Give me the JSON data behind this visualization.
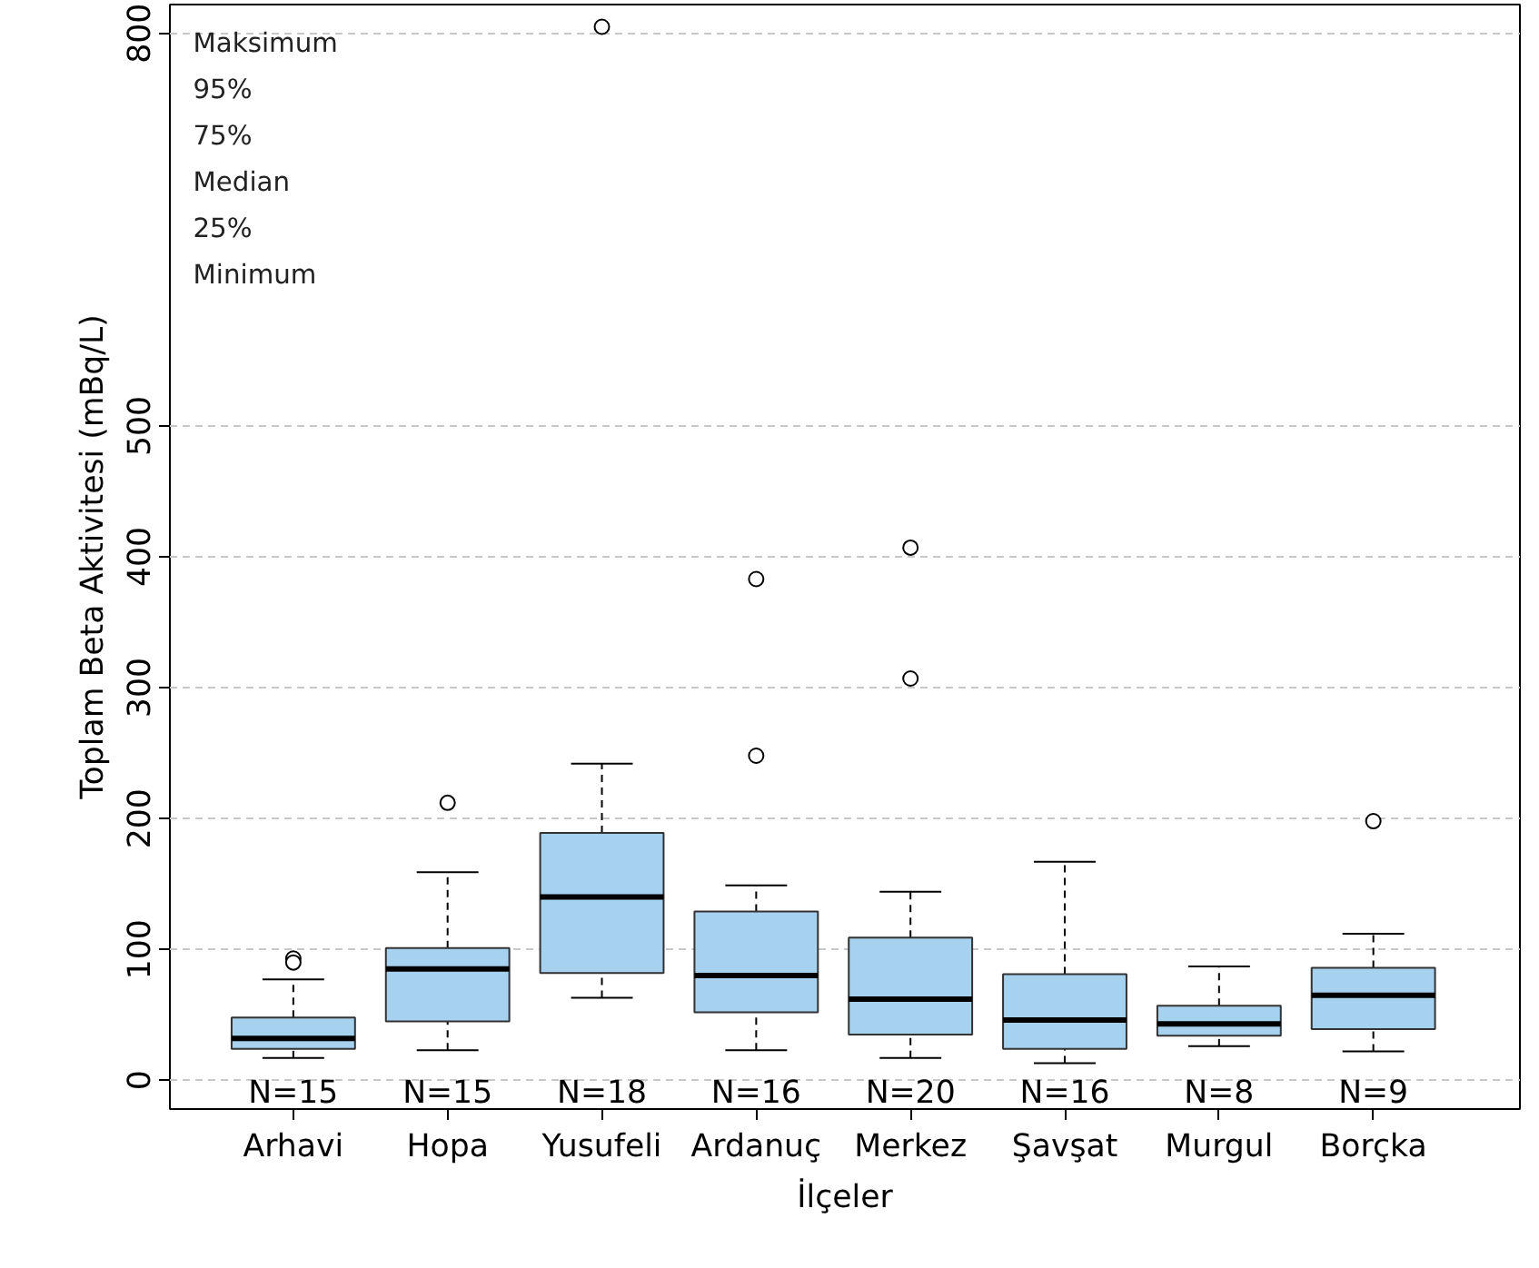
{
  "chart_data": {
    "type": "box",
    "categories": [
      "Arhavi",
      "Hopa",
      "Yusufeli",
      "Ardanuç",
      "Merkez",
      "Şavşat",
      "Murgul",
      "Borçka"
    ],
    "ylim": [
      -22,
      822
    ],
    "yticks": [
      0,
      100,
      200,
      300,
      400,
      500,
      800
    ],
    "grid": "y",
    "xlabel": "İlçeler",
    "ylabel": "Toplam Beta Aktivitesi (mBq/L)",
    "series": [
      {
        "color": "#a6d1ef",
        "boxes": [
          {
            "low": 17,
            "q1": 24,
            "median": 32,
            "q3": 48,
            "high": 77,
            "outliers": [
              93,
              90
            ]
          },
          {
            "low": 23,
            "q1": 45,
            "median": 85,
            "q3": 101,
            "high": 159,
            "outliers": [
              212
            ]
          },
          {
            "low": 63,
            "q1": 82,
            "median": 140,
            "q3": 189,
            "high": 242,
            "outliers": [
              805
            ]
          },
          {
            "low": 23,
            "q1": 52,
            "median": 80,
            "q3": 129,
            "high": 149,
            "outliers": [
              248,
              383
            ]
          },
          {
            "low": 17,
            "q1": 35,
            "median": 62,
            "q3": 109,
            "high": 144,
            "outliers": [
              307,
              407
            ]
          },
          {
            "low": 13,
            "q1": 24,
            "median": 46,
            "q3": 81,
            "high": 167
          },
          {
            "low": 26,
            "q1": 34,
            "median": 43,
            "q3": 57,
            "high": 87
          },
          {
            "low": 22,
            "q1": 39,
            "median": 65,
            "q3": 86,
            "high": 112,
            "outliers": [
              198
            ]
          }
        ]
      }
    ],
    "annotations": [
      "Maksimum",
      "95%",
      "75%",
      "Median",
      "25%",
      "Minimum",
      "N=15",
      "N=15",
      "N=18",
      "N=16",
      "N=20",
      "N=16",
      "N=8",
      "N=9"
    ]
  }
}
